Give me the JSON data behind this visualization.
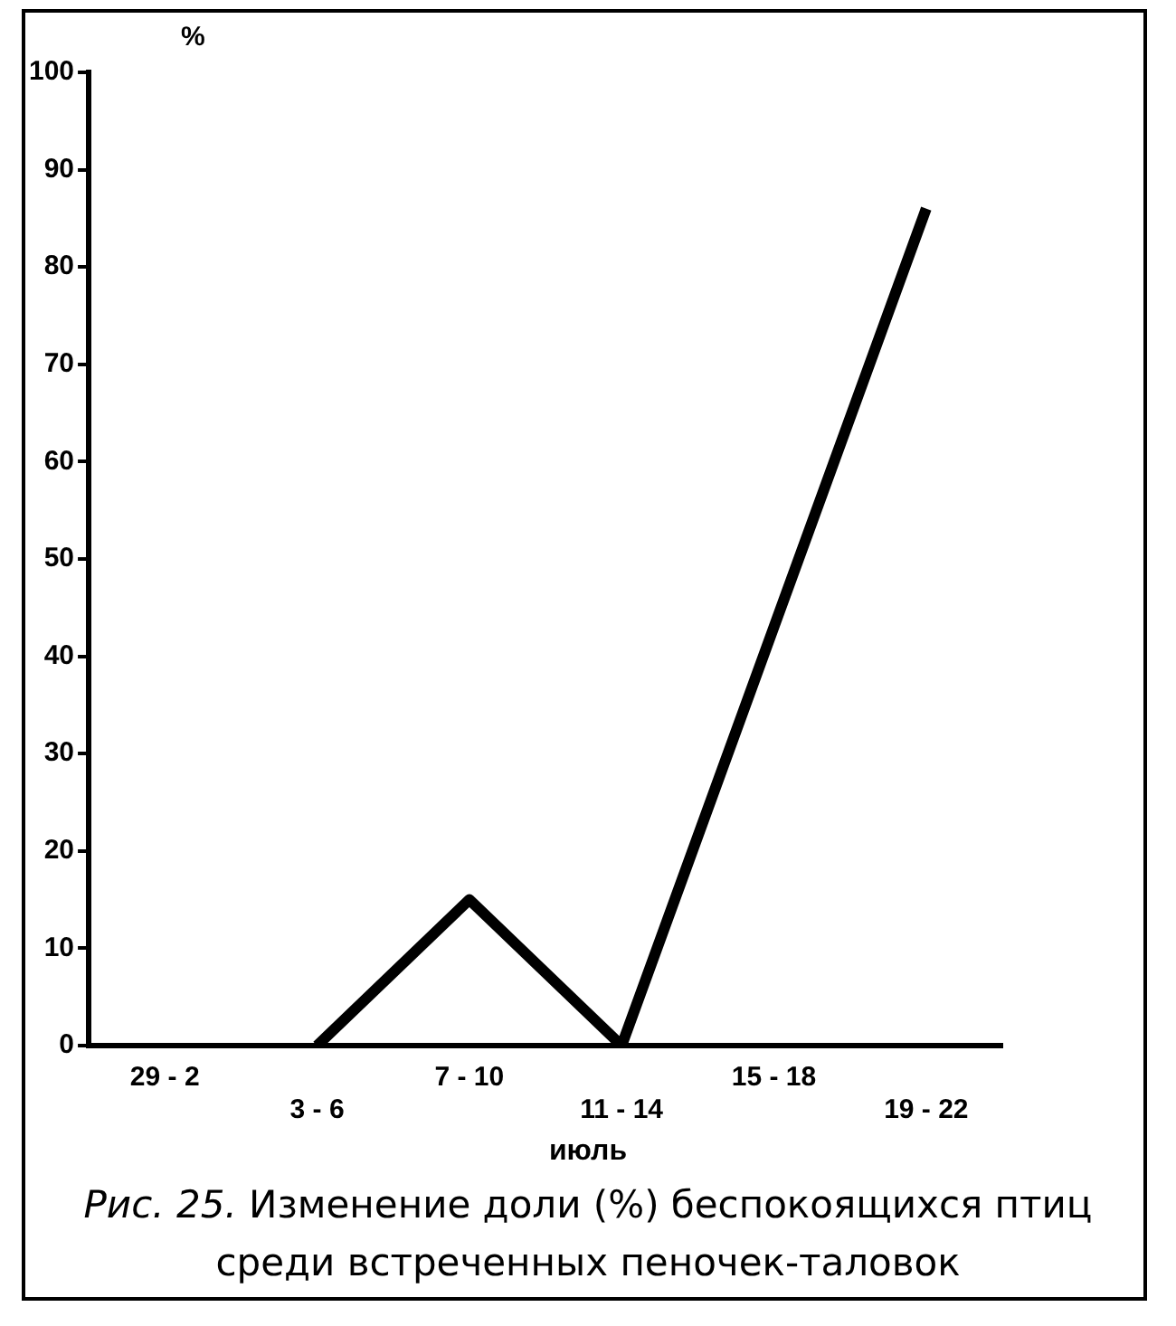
{
  "chart_data": {
    "type": "line",
    "xlabel": "июль",
    "ylabel": "%",
    "categories": [
      "29 - 2",
      "3 - 6",
      "7 - 10",
      "11 - 14",
      "15 - 18",
      "19 - 22"
    ],
    "values": [
      null,
      0,
      15,
      0,
      43,
      86
    ],
    "color": "#000000",
    "ylim": [
      0,
      100
    ],
    "yticks": [
      0,
      10,
      20,
      30,
      40,
      50,
      60,
      70,
      80,
      90,
      100
    ],
    "grid": false,
    "legend": false,
    "marker": "none",
    "line_style": "solid",
    "annotations": [
      "Рис. 25.",
      "Изменение доли (%) беспокоящихся птиц среди встреченных пеночек-таловок"
    ]
  }
}
